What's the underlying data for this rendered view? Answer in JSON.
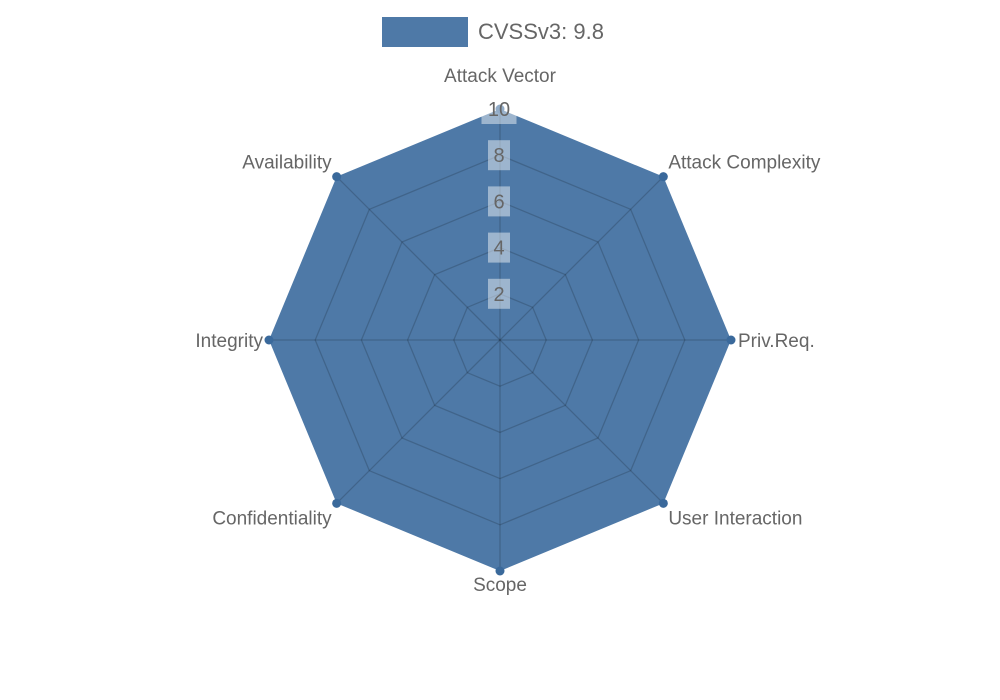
{
  "page": {
    "background": "#ffffff"
  },
  "legend": {
    "label": "CVSSv3: 9.8",
    "swatch_color": "#4e79a7",
    "text_color": "#666666"
  },
  "chart_data": {
    "type": "radar",
    "title": "",
    "categories": [
      "Attack Vector",
      "Attack Complexity",
      "Priv.Req.",
      "User Interaction",
      "Scope",
      "Confidentiality",
      "Integrity",
      "Availability"
    ],
    "series": [
      {
        "name": "CVSSv3: 9.8",
        "values": [
          10,
          10,
          10,
          10,
          10,
          10,
          10,
          10
        ]
      }
    ],
    "rmin": 0,
    "rmax": 10,
    "ticks": [
      2,
      4,
      6,
      8,
      10
    ],
    "grid": true,
    "legend_position": "top",
    "colors": {
      "fill": "#4e79a7",
      "marker": "#3a699b",
      "grid_line": "rgba(0,0,0,0.17)",
      "tick_backdrop": "rgba(255,255,255,0.45)",
      "tick_text": "#666666",
      "axis_label": "#666666"
    }
  }
}
